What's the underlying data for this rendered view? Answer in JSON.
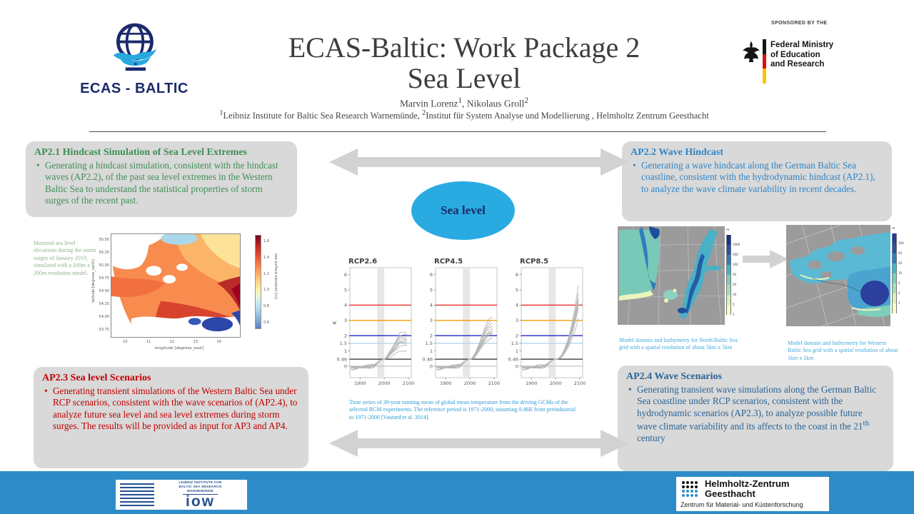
{
  "header": {
    "logo_text": "ECAS - BALTIC",
    "title_line1": "ECAS-Baltic: Work Package 2",
    "title_line2": "Sea Level",
    "authors": {
      "name1": "Marvin Lorenz",
      "sup1": "1",
      "sep": ", ",
      "name2": "Nikolaus Groll",
      "sup2": "2"
    },
    "affiliation": {
      "sup1": "1",
      "text1": "Leibniz Institute for Baltic Sea Research Warnemünde, ",
      "sup2": "2",
      "text2": "Institut für System Analyse und Modellierung , Helmholtz Zentrum Geesthacht"
    },
    "sponsor": {
      "sponsored_by": "SPONSORED BY THE",
      "ministry_lines": [
        "Federal Ministry",
        "of Education",
        "and Research"
      ]
    }
  },
  "bullet_char": "•",
  "boxes": {
    "ap21": {
      "title": "AP2.1 Hindcast Simulation of Sea Level Extremes",
      "bullet": "Generating a hindcast simulation,  consistent with the hindcast waves (AP2.2), of the past sea level extremes in the Western Baltic Sea to understand the statistical properties of storm surges of the recent past.",
      "color": "#3f8f55"
    },
    "ap22": {
      "title": "AP2.2 Wave Hindcast",
      "bullet": "Generating a wave hindcast along the German Baltic Sea coastline, consistent with the hydrodynamic hindcast (AP2.1), to analyze the wave climate variability  in recent decades.",
      "color": "#2e86c8"
    },
    "ap23": {
      "title": "AP2.3 Sea level Scenarios",
      "bullet": "Generating transient simulations  of the Western Baltic Sea under RCP scenarios, consistent with the wave scenarios of (AP2.4), to analyze future sea level and sea level extremes during storm surges. The results will be provided  as input  for AP3 and AP4.",
      "color": "#c00000"
    },
    "ap24": {
      "title": "AP2.4 Wave Scenarios",
      "bullet_before": "Generating transient wave simulations  along the German Baltic Sea coastline under RCP scenarios, consistent with the hydrodynamic  scenarios (AP2.3), to analyze possible  future wave climate variability  and its affects to the coast in the 21",
      "bullet_sup": "th",
      "bullet_after": " century",
      "color": "#2a6496"
    }
  },
  "center": {
    "bubble_label": "Sea level"
  },
  "captions": {
    "hindcast_map": "Maximal sea level elevations during the storm surges of January 2019, simulated with a 200m x 200m resolution model.",
    "temperature_series": "Time series of 30-year running mean of global mean temperature from the driving GCMs of the selected RCM experiments. The reference period is 1971-2000, assuming 0.46K from preindustrial to 1971-2000 [Vautard et al. 2014].",
    "bathy_north": "Model domain and bathymetry for North/Baltic Sea grid with a spatial resolution of about 5km x 5km",
    "bathy_western": "Model domain and bathymetry for Western Baltic Sea grid with a spatial resolution of about 1km x 1km"
  },
  "colors": {
    "footer_bar": "#2d8cc7",
    "bubble": "#29abe2",
    "box_bg": "#d9d9d9",
    "arrow": "#d2d2d2",
    "caption_green": "#8fb58c",
    "caption_blue": "#2e9bd6",
    "caption_lightblue": "#3fa9dc"
  },
  "footer": {
    "iow_lines": [
      "Leibniz Institute for",
      "Baltic Sea Research",
      "Warnemünde"
    ],
    "iow_word": "iow",
    "hzg_name1": "Helmholtz-Zentrum",
    "hzg_name2": "Geesthacht",
    "hzg_sub": "Zentrum für Material- und Küstenforschung"
  },
  "chart_data": [
    {
      "type": "line",
      "title": "RCP2.6",
      "ylabel": "K",
      "x_ticks": [
        1900,
        2000,
        2100
      ],
      "y_ticks": [
        0,
        0.46,
        1,
        1.5,
        2,
        3,
        4,
        5,
        6
      ],
      "xlim": [
        1858,
        2112
      ],
      "ylim": [
        -0.75,
        6.45
      ],
      "reference_period": [
        1971,
        2000
      ],
      "reference_lines": [
        {
          "y": 4,
          "color": "#e3211c"
        },
        {
          "y": 3,
          "color": "#f59c00"
        },
        {
          "y": 2,
          "color": "#2626c9"
        },
        {
          "y": 1.5,
          "color": "#a8d5e5"
        },
        {
          "y": 0.46,
          "color": "#2b2b2b"
        },
        {
          "y": 0,
          "color": "#c9c9c9"
        }
      ],
      "ensemble_end_K": [
        1.0,
        1.35,
        1.5,
        1.6,
        1.65,
        1.75,
        1.9,
        2.05,
        2.2
      ],
      "shape": "flatten"
    },
    {
      "type": "line",
      "title": "RCP4.5",
      "ylabel": "K",
      "x_ticks": [
        1900,
        2000,
        2100
      ],
      "y_ticks": [
        0,
        0.46,
        1,
        1.5,
        2,
        3,
        4,
        5,
        6
      ],
      "xlim": [
        1858,
        2112
      ],
      "ylim": [
        -0.75,
        6.45
      ],
      "reference_period": [
        1971,
        2000
      ],
      "reference_lines": [
        {
          "y": 4,
          "color": "#e3211c"
        },
        {
          "y": 3,
          "color": "#f59c00"
        },
        {
          "y": 2,
          "color": "#2626c9"
        },
        {
          "y": 1.5,
          "color": "#a8d5e5"
        },
        {
          "y": 0.46,
          "color": "#2b2b2b"
        },
        {
          "y": 0,
          "color": "#c9c9c9"
        }
      ],
      "ensemble_end_K": [
        1.85,
        2.1,
        2.2,
        2.3,
        2.4,
        2.6,
        2.8,
        3.0,
        3.2
      ],
      "shape": "smooth"
    },
    {
      "type": "line",
      "title": "RCP8.5",
      "ylabel": "K",
      "x_ticks": [
        1900,
        2000,
        2100
      ],
      "y_ticks": [
        0,
        0.46,
        1,
        1.5,
        2,
        3,
        4,
        5,
        6
      ],
      "xlim": [
        1858,
        2112
      ],
      "ylim": [
        -0.75,
        6.45
      ],
      "reference_period": [
        1971,
        2000
      ],
      "reference_lines": [
        {
          "y": 4,
          "color": "#e3211c"
        },
        {
          "y": 3,
          "color": "#f59c00"
        },
        {
          "y": 2,
          "color": "#2626c9"
        },
        {
          "y": 1.5,
          "color": "#a8d5e5"
        },
        {
          "y": 0.46,
          "color": "#2b2b2b"
        },
        {
          "y": 0,
          "color": "#c9c9c9"
        }
      ],
      "ensemble_end_K": [
        3.0,
        3.6,
        3.9,
        4.05,
        4.15,
        4.3,
        4.6,
        5.05
      ],
      "shape": "accel"
    },
    {
      "type": "heatmap",
      "name": "sea-level-hindcast-map",
      "xlabel": "longitude [degrees_east]",
      "ylabel": "latitude [degrees_north]",
      "x_ticks": [
        10,
        11,
        12,
        13,
        14
      ],
      "y_ticks": [
        55.5,
        55.25,
        55.0,
        54.75,
        54.5,
        54.25,
        54.0,
        53.75
      ],
      "lon_range": [
        9.38,
        14.93
      ],
      "lat_range": [
        55.63,
        53.6
      ],
      "colorbar_label": "sea surface elevation [m]",
      "colorbar_ticks": [
        1.6,
        1.4,
        1.2,
        1.0,
        0.8,
        0.6
      ]
    },
    {
      "type": "heatmap",
      "name": "bathymetry-north-baltic",
      "colorbar_label": "m",
      "colorbar_ticks": [
        1000,
        500,
        100,
        50,
        20,
        10,
        5,
        1
      ],
      "colorbar_colors": [
        "#14318f",
        "#2a52a2",
        "#2f7ebc",
        "#45b4c8",
        "#7fcdbb",
        "#a8ddb5",
        "#d9f0b8",
        "#f7fcc4"
      ]
    },
    {
      "type": "heatmap",
      "name": "bathymetry-western-baltic",
      "colorbar_label": "m",
      "colorbar_ticks": [
        100,
        50,
        20,
        10,
        5,
        2,
        1
      ],
      "colorbar_colors": [
        "#253a9e",
        "#2a52a2",
        "#2f7ebc",
        "#45b4c8",
        "#7fcdbb",
        "#a8ddb5",
        "#d9f0b8",
        "#f7fcc4"
      ]
    }
  ]
}
